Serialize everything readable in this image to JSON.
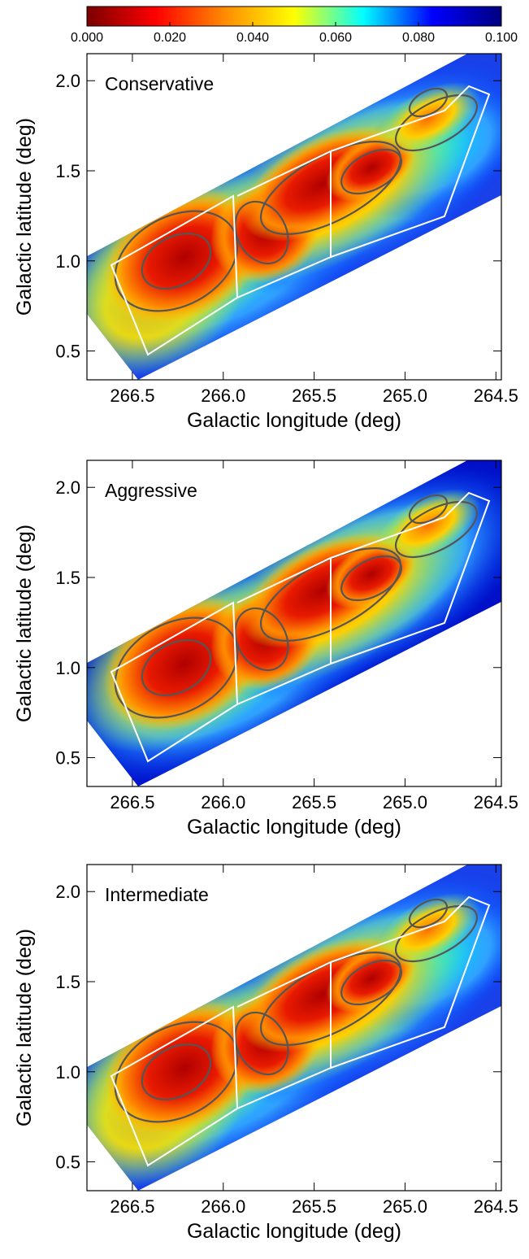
{
  "colorbar": {
    "lim": [
      0,
      0.1
    ],
    "ticks": [
      {
        "value": 0,
        "label": "0.000"
      },
      {
        "value": 0.02,
        "label": "0.020"
      },
      {
        "value": 0.04,
        "label": "0.040"
      },
      {
        "value": 0.06,
        "label": "0.060"
      },
      {
        "value": 0.08,
        "label": "0.080"
      },
      {
        "value": 0.1,
        "label": "0.100"
      }
    ],
    "colors": [
      "#7a0000",
      "#ff0000",
      "#ff8c00",
      "#ffff00",
      "#00ffff",
      "#0000ff",
      "#000080"
    ]
  },
  "chart_data": [
    {
      "type": "heatmap",
      "title": "Conservative",
      "x_label": "Galactic longitude (deg)",
      "y_label": "Galactic latitude (deg)",
      "xlim": [
        266.75,
        264.47
      ],
      "ylim": [
        0.34,
        2.15
      ],
      "xticks": [
        266.5,
        {
          "value": 266,
          "label": "266.0"
        },
        265.5,
        {
          "value": 265,
          "label": "265.0"
        },
        264.5
      ],
      "yticks": [
        0.5,
        {
          "value": 1,
          "label": "1.0"
        },
        1.5,
        {
          "value": 2,
          "label": "2.0"
        }
      ]
    },
    {
      "type": "heatmap",
      "title": "Aggressive",
      "x_label": "Galactic longitude (deg)",
      "y_label": "Galactic latitude (deg)",
      "xlim": [
        266.75,
        264.47
      ],
      "ylim": [
        0.34,
        2.15
      ],
      "xticks": [
        266.5,
        {
          "value": 266,
          "label": "266.0"
        },
        265.5,
        {
          "value": 265,
          "label": "265.0"
        },
        264.5
      ],
      "yticks": [
        0.5,
        {
          "value": 1,
          "label": "1.0"
        },
        1.5,
        {
          "value": 2,
          "label": "2.0"
        }
      ]
    },
    {
      "type": "heatmap",
      "title": "Intermediate",
      "x_label": "Galactic longitude (deg)",
      "y_label": "Galactic latitude (deg)",
      "xlim": [
        266.75,
        264.47
      ],
      "ylim": [
        0.34,
        2.15
      ],
      "xticks": [
        266.5,
        {
          "value": 266,
          "label": "266.0"
        },
        265.5,
        {
          "value": 265,
          "label": "265.0"
        },
        264.5
      ],
      "yticks": [
        0.5,
        {
          "value": 1,
          "label": "1.0"
        },
        1.5,
        {
          "value": 2,
          "label": "2.0"
        }
      ]
    }
  ]
}
